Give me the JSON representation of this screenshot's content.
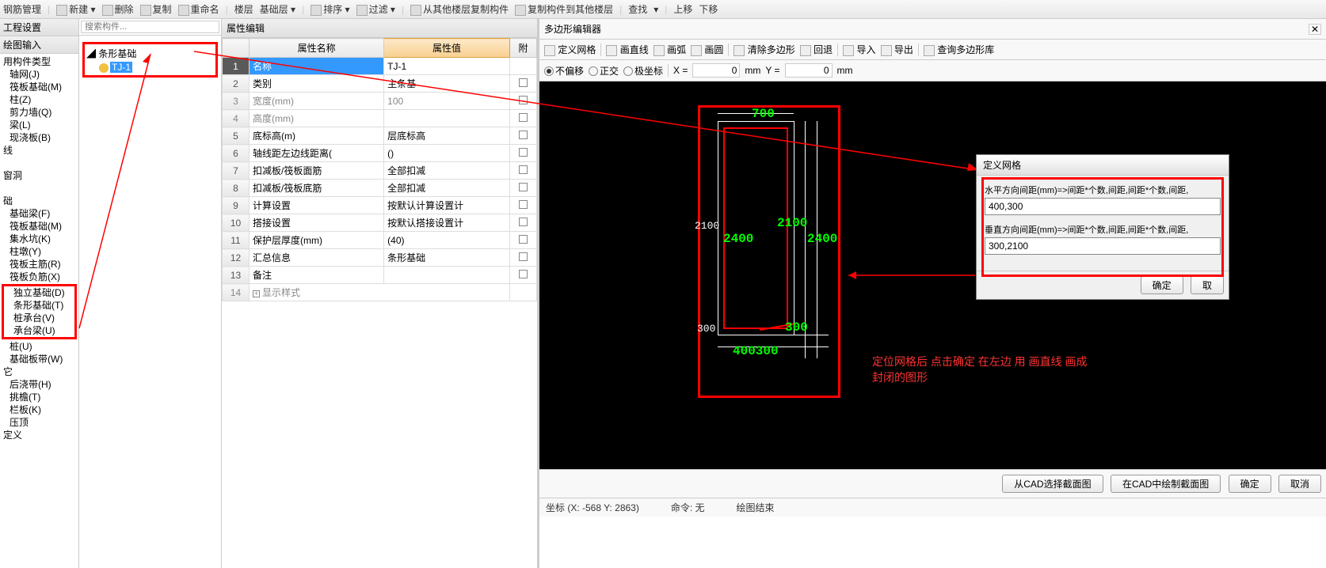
{
  "toolbar": {
    "rebar_mgmt": "钢筋管理",
    "new": "新建",
    "delete": "删除",
    "copy": "复制",
    "rename": "重命名",
    "floor": "楼层",
    "base_floor": "基础层",
    "sort": "排序",
    "filter": "过滤",
    "copy_from": "从其他楼层复制构件",
    "copy_to": "复制构件到其他楼层",
    "find": "查找",
    "up": "上移",
    "down": "下移"
  },
  "leftPanel": {
    "sec1": "工程设置",
    "sec2": "绘图输入",
    "groups": {
      "g1": "用构件类型",
      "items1": [
        "轴网(J)",
        "筏板基础(M)",
        "柱(Z)",
        "剪力墙(Q)",
        "梁(L)",
        "现浇板(B)"
      ],
      "g2": "线",
      "g3": "窗洞",
      "g4": "础",
      "items4": [
        "基础梁(F)",
        "筏板基础(M)",
        "集水坑(K)",
        "柱墩(Y)",
        "筏板主筋(R)",
        "筏板负筋(X)"
      ],
      "items4b": [
        "独立基础(D)",
        "条形基础(T)",
        "桩承台(V)",
        "承台梁(U)"
      ],
      "items4c": [
        "桩(U)",
        "基础板带(W)"
      ],
      "g5": "它",
      "items5": [
        "后浇带(H)",
        "挑檐(T)",
        "栏板(K)",
        "压顶"
      ],
      "g6": "定义"
    }
  },
  "treePanel": {
    "search_ph": "搜索构件...",
    "root": "条形基础",
    "item": "TJ-1"
  },
  "propPanel": {
    "title": "属性编辑",
    "h_name": "属性名称",
    "h_val": "属性值",
    "h_att": "附",
    "rows": [
      {
        "n": "1",
        "name": "名称",
        "val": "TJ-1",
        "sel": true
      },
      {
        "n": "2",
        "name": "类别",
        "val": "主条基"
      },
      {
        "n": "3",
        "name": "宽度(mm)",
        "val": "100",
        "gray": true
      },
      {
        "n": "4",
        "name": "高度(mm)",
        "val": "",
        "gray": true
      },
      {
        "n": "5",
        "name": "底标高(m)",
        "val": "层底标高"
      },
      {
        "n": "6",
        "name": "轴线距左边线距离(",
        "val": "()"
      },
      {
        "n": "7",
        "name": "扣减板/筏板面筋",
        "val": "全部扣减"
      },
      {
        "n": "8",
        "name": "扣减板/筏板底筋",
        "val": "全部扣减"
      },
      {
        "n": "9",
        "name": "计算设置",
        "val": "按默认计算设置计"
      },
      {
        "n": "10",
        "name": "搭接设置",
        "val": "按默认搭接设置计"
      },
      {
        "n": "11",
        "name": "保护层厚度(mm)",
        "val": "(40)"
      },
      {
        "n": "12",
        "name": "汇总信息",
        "val": "条形基础"
      },
      {
        "n": "13",
        "name": "备注",
        "val": ""
      }
    ],
    "display_style": "显示样式"
  },
  "editor": {
    "title": "多边形编辑器",
    "tb": {
      "grid": "定义网格",
      "line": "画直线",
      "arc": "画弧",
      "circle": "画圆",
      "clear": "清除多边形",
      "back": "回退",
      "import": "导入",
      "export": "导出",
      "search": "查询多边形库",
      "r1": "不偏移",
      "r2": "正交",
      "r3": "极坐标",
      "xl": "X =",
      "xv": "0",
      "xu": "mm",
      "yl": "Y =",
      "yv": "0",
      "yu": "mm"
    },
    "canvas": {
      "labels": {
        "top700": "700",
        "l2100": "2100",
        "l2400g": "2400",
        "r2100g": "2100",
        "r2400g": "2400",
        "b300": "300",
        "b300g": "300",
        "bot": "400300"
      },
      "anno": "定位网格后 点击确定 在左边 用 画直线 画成封闭的图形"
    },
    "btns": {
      "cad_sel": "从CAD选择截面图",
      "cad_draw": "在CAD中绘制截面图",
      "ok": "确定",
      "cancel": "取消"
    },
    "status": {
      "coord": "坐标 (X: -568 Y: 2863)",
      "cmd": "命令: 无",
      "end": "绘图结束"
    }
  },
  "dialog": {
    "title": "定义网格",
    "h_label": "水平方向间距(mm)=>间距*个数,间距,间距*个数,间距,",
    "h_val": "400,300",
    "v_label": "垂直方向间距(mm)=>间距*个数,间距,间距*个数,间距,",
    "v_val": "300,2100",
    "ok": "确定",
    "cancel": "取"
  }
}
